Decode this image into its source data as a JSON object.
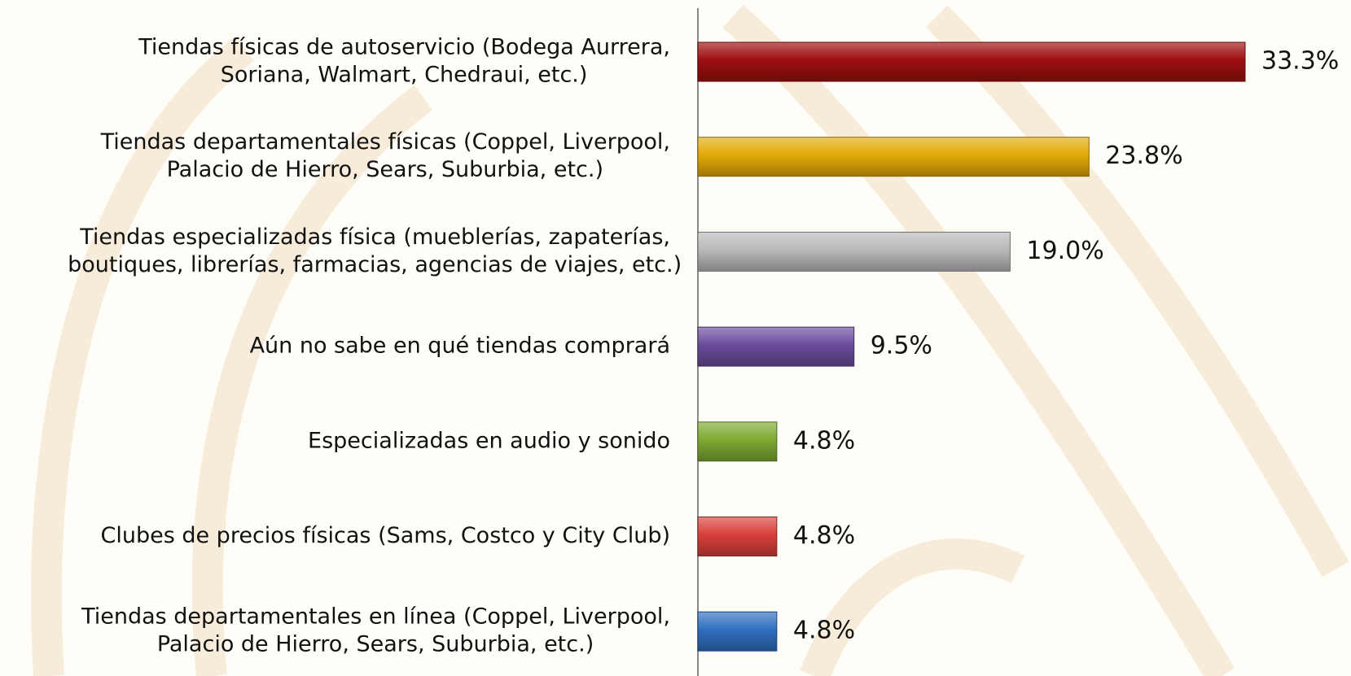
{
  "chart_data": {
    "type": "bar",
    "orientation": "horizontal",
    "categories": [
      [
        "Tiendas físicas de autoservicio (Bodega Aurrera,",
        "Soriana, Walmart, Chedraui, etc.)"
      ],
      [
        "Tiendas departamentales físicas (Coppel, Liverpool,",
        "Palacio de Hierro, Sears, Suburbia, etc.)"
      ],
      [
        "Tiendas especializadas física (mueblerías, zapaterías,",
        "boutiques, librerías, farmacias, agencias de viajes, etc.)"
      ],
      [
        "Aún no sabe en qué tiendas comprará"
      ],
      [
        "Especializadas en audio y sonido"
      ],
      [
        "Clubes de precios físicas (Sams, Costco y City Club)"
      ],
      [
        "Tiendas departamentales en línea (Coppel, Liverpool,",
        "Palacio de Hierro, Sears, Suburbia, etc.)"
      ]
    ],
    "values": [
      33.3,
      23.8,
      19.0,
      9.5,
      4.8,
      4.8,
      4.8
    ],
    "value_labels": [
      "33.3%",
      "23.8%",
      "19.0%",
      "9.5%",
      "4.8%",
      "4.8%",
      "4.8%"
    ],
    "colors": [
      "#9e0f0f",
      "#e2aa08",
      "#b9b9b9",
      "#6b4c9c",
      "#7eaa32",
      "#d8403a",
      "#2f6fc0"
    ]
  }
}
